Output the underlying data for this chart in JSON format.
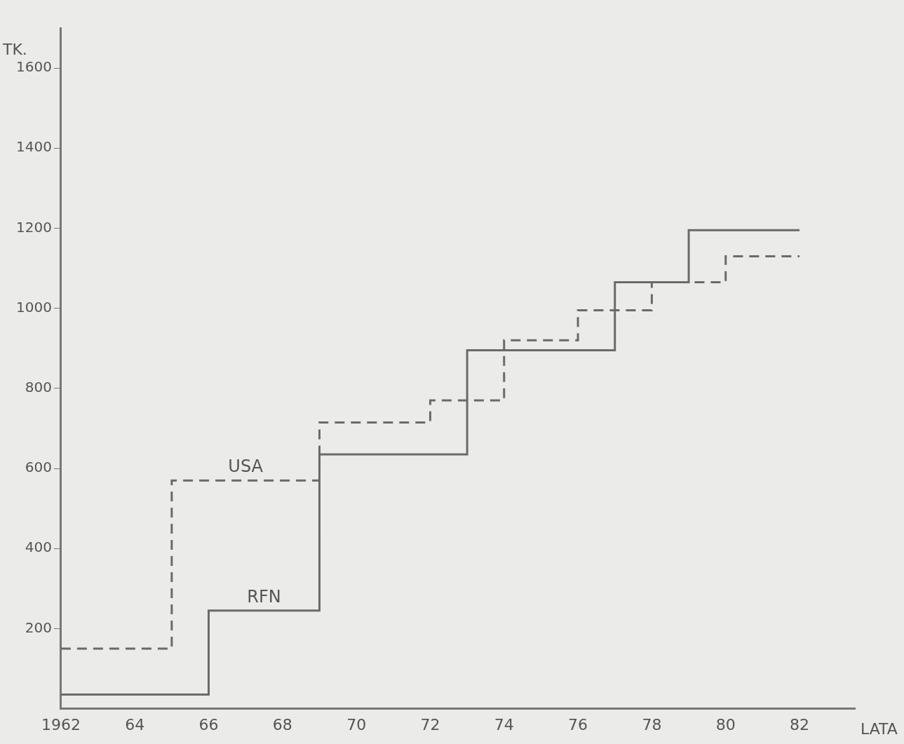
{
  "chart_data": {
    "type": "step",
    "xlabel": "LATA",
    "ylabel": "TK.",
    "xlim": [
      1962,
      1983.5
    ],
    "xticks": [
      1962,
      {
        "value": 1964,
        "label": "64"
      },
      {
        "value": 1966,
        "label": "66"
      },
      {
        "value": 1968,
        "label": "68"
      },
      {
        "value": 1970,
        "label": "70"
      },
      {
        "value": 1972,
        "label": "72"
      },
      {
        "value": 1974,
        "label": "74"
      },
      {
        "value": 1976,
        "label": "76"
      },
      {
        "value": 1978,
        "label": "78"
      },
      {
        "value": 1980,
        "label": "80"
      },
      {
        "value": 1982,
        "label": "82"
      }
    ],
    "ylim": [
      0,
      1700
    ],
    "yticks": [
      200,
      400,
      600,
      800,
      1000,
      1200,
      1400,
      1600
    ],
    "series": [
      {
        "name": "USA",
        "color": "#6a6a6a",
        "line_style": "dashed",
        "x": [
          1962,
          1965,
          1969,
          1972,
          1974,
          1976,
          1978,
          1980,
          1982
        ],
        "values": [
          150,
          570,
          715,
          770,
          920,
          995,
          1065,
          1130,
          1130
        ]
      },
      {
        "name": "RFN",
        "color": "#6a6a6a",
        "line_style": "solid",
        "x": [
          1962,
          1966,
          1969,
          1973,
          1977,
          1979,
          1982
        ],
        "values": [
          35,
          245,
          635,
          895,
          1065,
          1195,
          1195
        ]
      }
    ]
  }
}
